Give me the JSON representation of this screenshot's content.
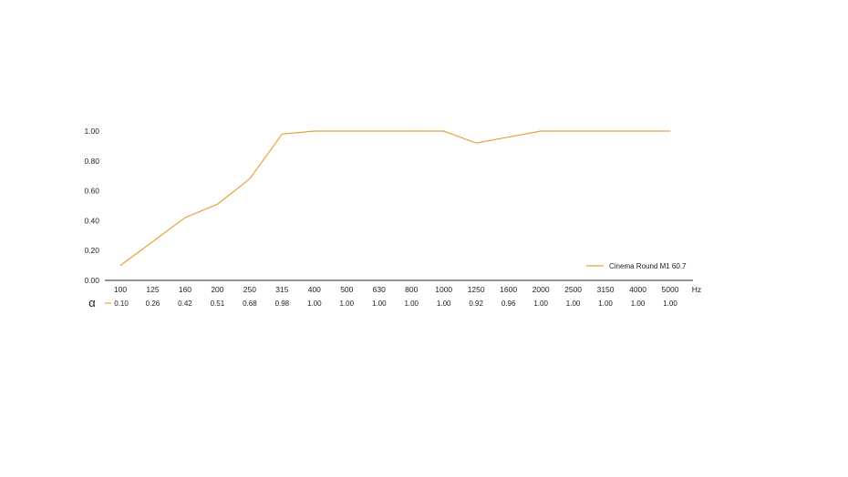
{
  "chart_data": {
    "type": "line",
    "title": "",
    "xlabel": "",
    "ylabel": "",
    "x_unit": "Hz",
    "row_label": "α",
    "categories": [
      "100",
      "125",
      "160",
      "200",
      "250",
      "315",
      "400",
      "500",
      "630",
      "800",
      "1000",
      "1250",
      "1600",
      "2000",
      "2500",
      "3150",
      "4000",
      "5000"
    ],
    "y_ticks": [
      "0.00",
      "0.20",
      "0.40",
      "0.60",
      "0.80",
      "1.00"
    ],
    "ylim": [
      0,
      1
    ],
    "grid": false,
    "legend_position": "bottom-right",
    "series": [
      {
        "name": "Cinema Round M1 60.7",
        "color": "#e8a33d",
        "values": [
          0.1,
          0.26,
          0.42,
          0.51,
          0.68,
          0.98,
          1.0,
          1.0,
          1.0,
          1.0,
          1.0,
          0.92,
          0.96,
          1.0,
          1.0,
          1.0,
          1.0,
          1.0
        ],
        "value_labels": [
          "0.10",
          "0.26",
          "0.42",
          "0.51",
          "0.68",
          "0.98",
          "1.00",
          "1.00",
          "1.00",
          "1.00",
          "1.00",
          "0.92",
          "0.96",
          "1.00",
          "1.00",
          "1.00",
          "1.00",
          "1.00"
        ]
      }
    ]
  }
}
